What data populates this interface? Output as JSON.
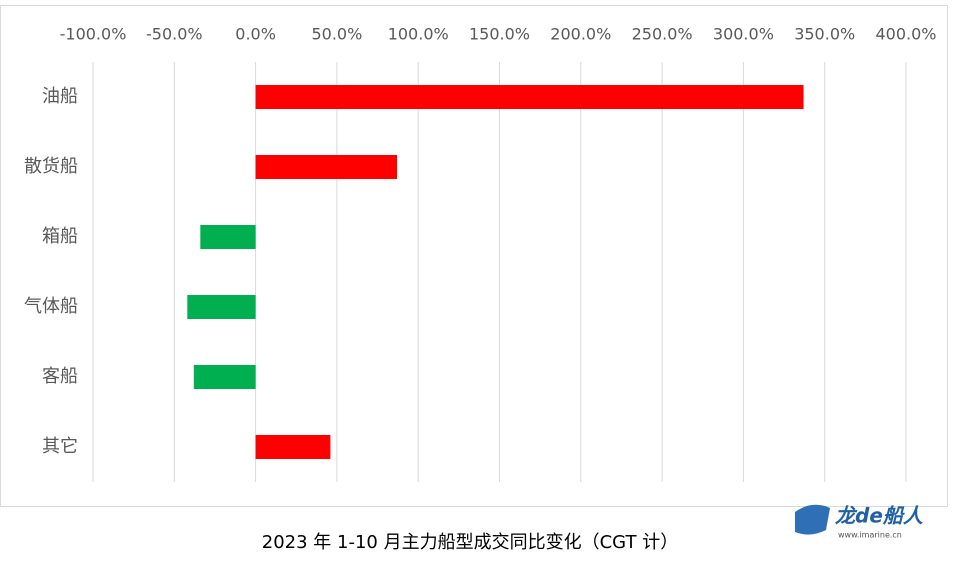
{
  "chart_data": {
    "type": "bar",
    "orientation": "horizontal",
    "caption": "2023 年 1-10 月主力船型成交同比变化（CGT 计）",
    "categories": [
      "油船",
      "散货船",
      "箱船",
      "气体船",
      "客船",
      "其它"
    ],
    "values": [
      337,
      87,
      -34,
      -42,
      -38,
      46
    ],
    "colors": [
      "#ff0000",
      "#ff0000",
      "#00b050",
      "#00b050",
      "#00b050",
      "#ff0000"
    ],
    "xlim": [
      -100,
      400
    ],
    "xticks": [
      {
        "value": -100,
        "label": "-100.0%"
      },
      {
        "value": -50,
        "label": "-50.0%"
      },
      {
        "value": 0,
        "label": "0.0%"
      },
      {
        "value": 50,
        "label": "50.0%"
      },
      {
        "value": 100,
        "label": "100.0%"
      },
      {
        "value": 150,
        "label": "150.0%"
      },
      {
        "value": 200,
        "label": "200.0%"
      },
      {
        "value": 250,
        "label": "250.0%"
      },
      {
        "value": 300,
        "label": "300.0%"
      },
      {
        "value": 350,
        "label": "350.0%"
      },
      {
        "value": 400,
        "label": "400.0%"
      }
    ],
    "grid": true
  },
  "watermark": {
    "brand": "龙de船人",
    "url": "www.imarine.cn"
  }
}
